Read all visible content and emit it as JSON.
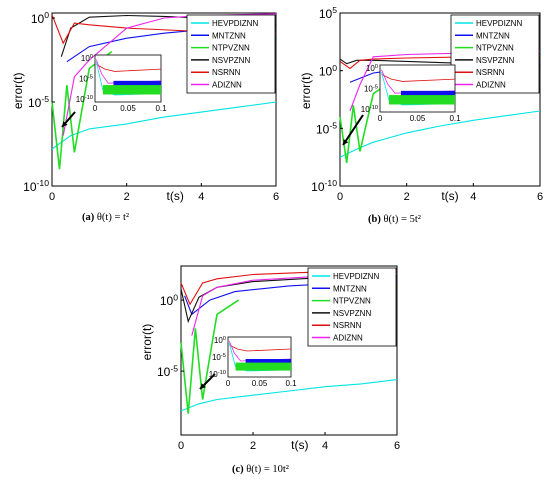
{
  "legend_entries": [
    "HEVPDIZNN",
    "MNTZNN",
    "NTPVZNN",
    "NSVPZNN",
    "NSRNN",
    "ADIZNN"
  ],
  "colors": {
    "HEVPDIZNN": "#00e5e5",
    "MNTZNN": "#1010ee",
    "NTPVZNN": "#22dd22",
    "NSVPZNN": "#111111",
    "NSRNN": "#e01010",
    "ADIZNN": "#ee22ee"
  },
  "captions": {
    "a": {
      "label": "(a)",
      "text": "θ(t) = t²"
    },
    "b": {
      "label": "(b)",
      "text": "θ(t) = 5t²"
    },
    "c": {
      "label": "(c)",
      "text": "θ(t) = 10t²"
    }
  },
  "chart_data": [
    {
      "type": "line",
      "panel": "a",
      "xlabel": "t(s)",
      "ylabel": "error(t)",
      "xlim": [
        0,
        6
      ],
      "xticks": [
        0,
        2,
        4,
        6
      ],
      "yscale": "log",
      "yticks": [
        "10^{0}",
        "10^{-5}",
        "10^{-10}"
      ],
      "ylim_log10": [
        -10,
        0.3
      ],
      "legend": "top-right",
      "inset": {
        "xlim": [
          0,
          0.1
        ],
        "xticks": [
          "0",
          "0.05",
          "0.1"
        ],
        "yticks": [
          "10^{0}",
          "10^{-5}",
          "10^{-10}"
        ]
      },
      "series": [
        {
          "name": "HEVPDIZNN",
          "x": [
            0,
            0.5,
            1,
            2,
            3,
            4,
            5,
            6
          ],
          "log10_y": [
            -7.8,
            -7.0,
            -6.6,
            -6.3,
            -5.9,
            -5.6,
            -5.3,
            -5.0
          ]
        },
        {
          "name": "MNTZNN",
          "x": [
            0.4,
            1,
            2,
            3,
            4,
            5,
            6
          ],
          "log10_y": [
            -2.6,
            -1.7,
            -1.2,
            -0.9,
            -0.7,
            -0.6,
            -0.5
          ]
        },
        {
          "name": "NTPVZNN",
          "x": [
            0,
            0.2,
            0.4,
            0.6,
            1,
            1.6
          ],
          "log10_y": [
            -5,
            -9,
            -4,
            -8,
            -3,
            -2
          ]
        },
        {
          "name": "NSVPZNN",
          "x": [
            0.25,
            0.5,
            1,
            2,
            3,
            4,
            5,
            6
          ],
          "log10_y": [
            -2.3,
            -0.6,
            0.05,
            0.15,
            0.1,
            0.0,
            -0.2,
            -0.4
          ]
        },
        {
          "name": "NSRNN",
          "x": [
            0,
            0.3,
            0.6,
            1,
            2,
            4,
            6
          ],
          "log10_y": [
            0.2,
            -1.5,
            -0.3,
            -0.4,
            -0.6,
            -0.8,
            -0.9
          ]
        },
        {
          "name": "ADIZNN",
          "x": [
            0.3,
            0.6,
            1,
            2,
            3,
            4,
            6
          ],
          "log10_y": [
            -7,
            -3.5,
            -2.5,
            -0.6,
            0.0,
            0.15,
            0.25
          ]
        }
      ]
    },
    {
      "type": "line",
      "panel": "b",
      "xlabel": "t(s)",
      "ylabel": "error(t)",
      "xlim": [
        0,
        6
      ],
      "xticks": [
        0,
        2,
        4,
        6
      ],
      "yscale": "log",
      "yticks": [
        "10^{5}",
        "10^{0}",
        "10^{-5}",
        "10^{-10}"
      ],
      "ylim_log10": [
        -10,
        5
      ],
      "legend": "top-right",
      "inset": {
        "xlim": [
          0,
          0.1
        ],
        "xticks": [
          "0",
          "0.05",
          "0.1"
        ],
        "yticks": [
          "10^{0}",
          "10^{-5}",
          "10^{-10}"
        ]
      },
      "series": [
        {
          "name": "HEVPDIZNN",
          "x": [
            0,
            0.5,
            1,
            2,
            3,
            4,
            5,
            6
          ],
          "log10_y": [
            -7.5,
            -6.8,
            -6.2,
            -5.4,
            -4.8,
            -4.3,
            -3.9,
            -3.5
          ]
        },
        {
          "name": "MNTZNN",
          "x": [
            0.3,
            1,
            2,
            3,
            4,
            6
          ],
          "log10_y": [
            -1.0,
            -0.2,
            0.2,
            0.4,
            0.5,
            0.6
          ]
        },
        {
          "name": "NTPVZNN",
          "x": [
            0,
            0.2,
            0.4,
            0.6,
            1,
            1.5
          ],
          "log10_y": [
            -4,
            -8,
            -3,
            -7,
            -2,
            -1
          ]
        },
        {
          "name": "NSVPZNN",
          "x": [
            0,
            0.2,
            0.5,
            1,
            2,
            4,
            6
          ],
          "log10_y": [
            1.0,
            0.6,
            0.9,
            0.9,
            0.8,
            0.6,
            0.4
          ]
        },
        {
          "name": "NSRNN",
          "x": [
            0,
            0.3,
            0.6,
            1,
            2,
            4,
            6
          ],
          "log10_y": [
            0.8,
            0.2,
            0.9,
            1.0,
            1.1,
            1.2,
            1.3
          ]
        },
        {
          "name": "ADIZNN",
          "x": [
            0.3,
            0.6,
            1,
            2,
            4,
            6
          ],
          "log10_y": [
            -3.5,
            -1.2,
            1.2,
            1.4,
            1.55,
            1.65
          ]
        }
      ]
    },
    {
      "type": "line",
      "panel": "c",
      "xlabel": "t(s)",
      "ylabel": "error(t)",
      "xlim": [
        0,
        6
      ],
      "xticks": [
        0,
        2,
        4,
        6
      ],
      "yscale": "log",
      "yticks": [
        "10^{0}",
        "10^{-5}"
      ],
      "ylim_log10": [
        -9.5,
        2.4
      ],
      "legend": "top-right",
      "inset": {
        "xlim": [
          0,
          0.1
        ],
        "xticks": [
          "0",
          "0.05",
          "0.1"
        ],
        "yticks": [
          "10^{0}",
          "10^{-5}",
          "10^{-10}"
        ]
      },
      "series": [
        {
          "name": "HEVPDIZNN",
          "x": [
            0,
            0.5,
            1,
            2,
            3,
            4,
            5,
            6
          ],
          "log10_y": [
            -7.8,
            -7.3,
            -7.0,
            -6.7,
            -6.4,
            -6.1,
            -5.9,
            -5.6
          ]
        },
        {
          "name": "MNTZNN",
          "x": [
            0.1,
            0.3,
            0.8,
            1.5,
            3,
            4.5,
            6
          ],
          "log10_y": [
            0.3,
            -1.0,
            0.0,
            0.6,
            1.0,
            1.2,
            1.3
          ]
        },
        {
          "name": "NTPVZNN",
          "x": [
            0,
            0.2,
            0.4,
            0.6,
            1,
            1.6
          ],
          "log10_y": [
            -3,
            -8,
            -2,
            -7,
            -1,
            0
          ]
        },
        {
          "name": "NSVPZNN",
          "x": [
            0,
            0.2,
            0.5,
            1,
            2,
            4,
            6
          ],
          "log10_y": [
            0.8,
            -1.5,
            0.2,
            0.9,
            1.3,
            1.6,
            1.7
          ]
        },
        {
          "name": "NSRNN",
          "x": [
            0,
            0.25,
            0.6,
            1,
            2,
            4,
            6
          ],
          "log10_y": [
            1.2,
            -0.3,
            1.2,
            1.5,
            1.8,
            2.0,
            2.1
          ]
        },
        {
          "name": "ADIZNN",
          "x": [
            0.3,
            0.6,
            1,
            2,
            4,
            6
          ],
          "log10_y": [
            -2.5,
            0.3,
            0.9,
            1.4,
            1.7,
            1.85
          ]
        }
      ]
    }
  ]
}
